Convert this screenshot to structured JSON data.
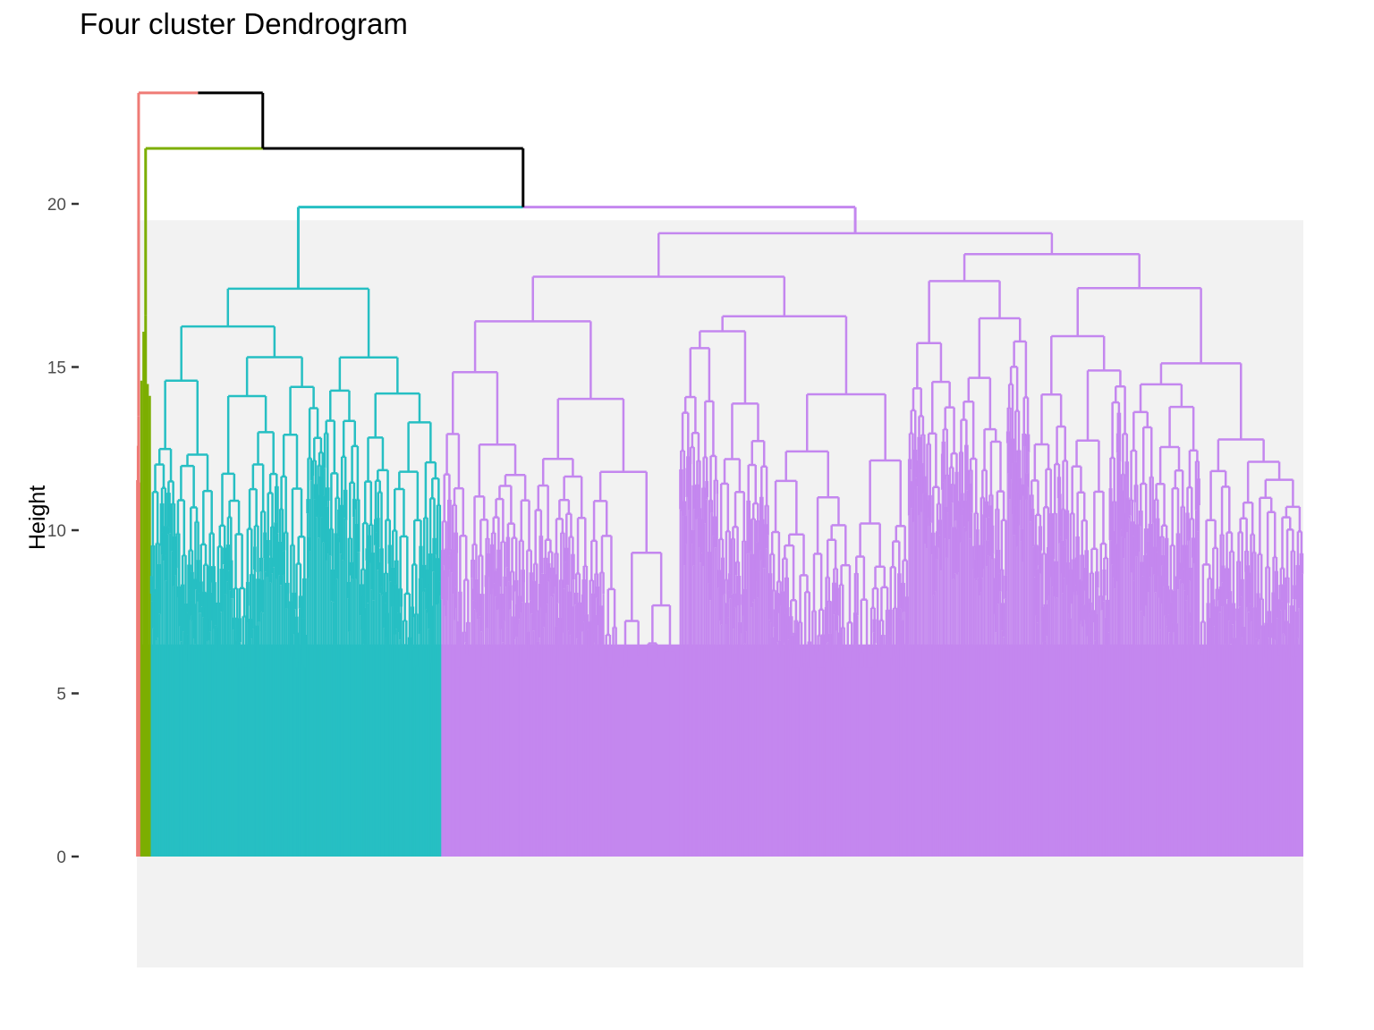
{
  "chart_data": {
    "type": "dendrogram",
    "title": "Four cluster Dendrogram",
    "xlabel": "",
    "ylabel": "Height",
    "ylim": [
      -3.4,
      23.4
    ],
    "yticks": [
      0,
      5,
      10,
      15,
      20
    ],
    "grid": false,
    "panel_background": "#f2f2f2",
    "n_clusters": 4,
    "clusters": [
      {
        "color": "#ef7b76",
        "leaf_span": [
          0.0,
          0.003
        ],
        "merge_height": 13.5
      },
      {
        "color": "#7cae00",
        "leaf_span": [
          0.003,
          0.012
        ],
        "merge_height": 16.6
      },
      {
        "color": "#26bfc3",
        "leaf_span": [
          0.012,
          0.261
        ],
        "merge_height": 17.4
      },
      {
        "color": "#c487ef",
        "leaf_span": [
          0.261,
          1.0
        ],
        "merge_height": 19.1
      }
    ],
    "top_merges": [
      {
        "height": 23.4,
        "joins": [
          "red",
          "green-cyan-purple"
        ]
      },
      {
        "height": 21.7,
        "joins": [
          "green",
          "cyan-purple"
        ]
      },
      {
        "height": 19.9,
        "joins": [
          "cyan",
          "purple"
        ]
      }
    ],
    "colors": {
      "red": "#ef7b76",
      "green": "#7cae00",
      "cyan": "#26bfc3",
      "purple": "#c487ef",
      "trunk": "#000000"
    }
  }
}
